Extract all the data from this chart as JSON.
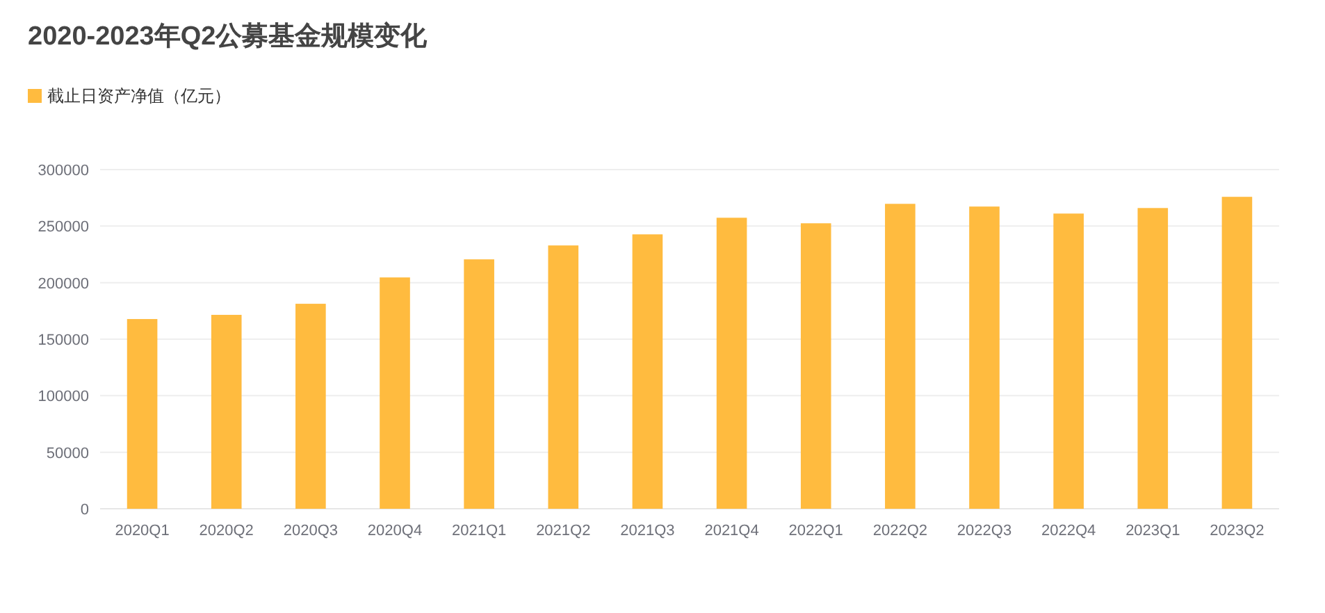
{
  "chart_data": {
    "type": "bar",
    "title": "2020-2023年Q2公募基金规模变化",
    "categories": [
      "2020Q1",
      "2020Q2",
      "2020Q3",
      "2020Q4",
      "2021Q1",
      "2021Q2",
      "2021Q3",
      "2021Q4",
      "2022Q1",
      "2022Q2",
      "2022Q3",
      "2022Q4",
      "2023Q1",
      "2023Q2"
    ],
    "series": [
      {
        "name": "截止日资产净值（亿元）",
        "color": "#ffbb3f",
        "values": [
          167800,
          171500,
          181300,
          204600,
          220600,
          232900,
          242700,
          257400,
          252500,
          269700,
          267300,
          261100,
          266000,
          275900
        ]
      }
    ],
    "ylim": [
      0,
      300000
    ],
    "yticks": [
      0,
      50000,
      100000,
      150000,
      200000,
      250000,
      300000
    ],
    "grid": "y",
    "legend": "top left"
  }
}
